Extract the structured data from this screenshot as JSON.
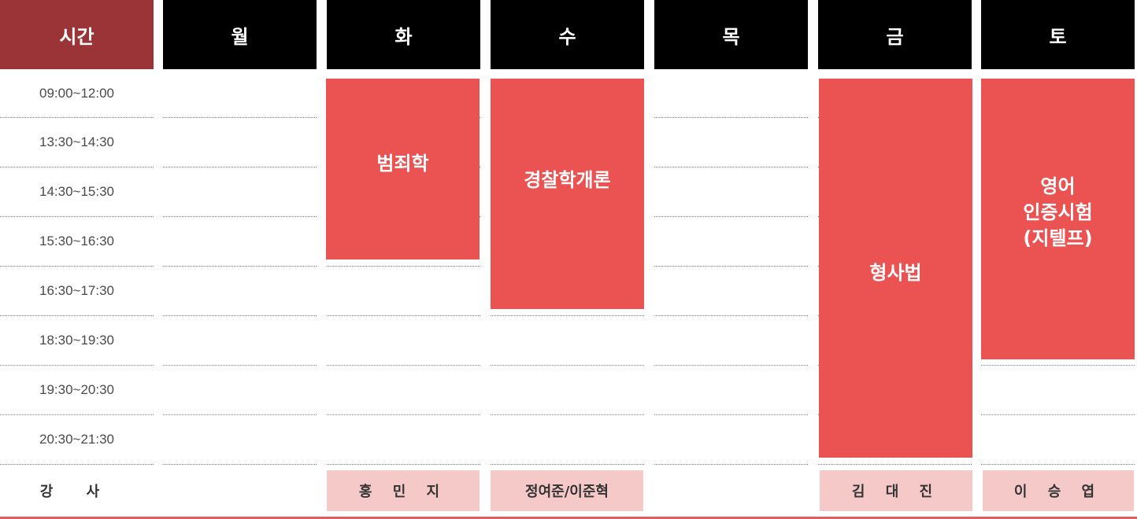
{
  "header": {
    "time": "시간",
    "days": [
      "월",
      "화",
      "수",
      "목",
      "금",
      "토"
    ]
  },
  "time_slots": [
    "09:00~12:00",
    "13:30~14:30",
    "14:30~15:30",
    "15:30~16:30",
    "16:30~17:30",
    "18:30~19:30",
    "19:30~20:30",
    "20:30~21:30"
  ],
  "courses": {
    "tue": "범죄학",
    "wed": "경찰학개론",
    "fri": "형사법",
    "sat": "영어\n인증시험\n(지텔프)"
  },
  "instructor_row": {
    "label": "강 사",
    "tue": "홍 민 지",
    "wed": "정여준/이준혁",
    "fri": "김 대 진",
    "sat": "이 승 엽"
  },
  "colors": {
    "time_header": "#9a3436",
    "day_header": "#000000",
    "course_block": "#eb5252",
    "instructor_cell": "#f6c9c9",
    "bottom_rule": "#e05b5b"
  }
}
